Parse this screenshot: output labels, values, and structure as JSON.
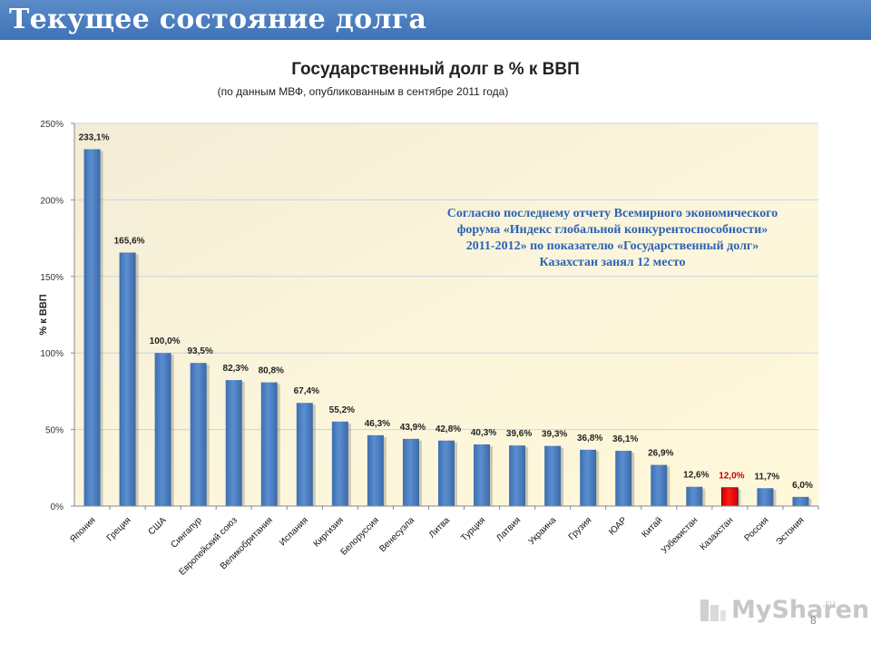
{
  "header": {
    "title": "Текущее состояние долга"
  },
  "annotation": {
    "lines": [
      "Согласно последнему отчету Всемирного экономического",
      "форума «Индекс глобальной конкурентоспособности»",
      "2011-2012» по показателю «Государственный долг»",
      "Казахстан занял 12 место"
    ]
  },
  "page_number": "8",
  "logo": {
    "text": "MySharen",
    "suffix": ".ru",
    "icon": "logo-icon"
  },
  "colors": {
    "bar": "#4f81bd",
    "highlight_bar": "#e00000",
    "highlight_label": "#c00000",
    "header": "#4a7ebf"
  },
  "chart_data": {
    "type": "bar",
    "title": "Государственный долг в % к ВВП",
    "subtitle": "(по данным МВФ, опубликованным в сентябре 2011 года)",
    "ylabel": "% к ВВП",
    "xlabel": "",
    "ylim": [
      0,
      250
    ],
    "yticks": [
      0,
      50,
      100,
      150,
      200,
      250
    ],
    "ytick_labels": [
      "0%",
      "50%",
      "100%",
      "150%",
      "200%",
      "250%"
    ],
    "grid": true,
    "legend": "none",
    "categories": [
      "Япония",
      "Греция",
      "США",
      "Сингапур",
      "Европейский союз",
      "Великобритания",
      "Испания",
      "Киргизия",
      "Белоруссия",
      "Венесуэла",
      "Литва",
      "Турция",
      "Латвия",
      "Украина",
      "Грузия",
      "ЮАР",
      "Китай",
      "Узбекистан",
      "Казахстан",
      "Россия",
      "Эстония"
    ],
    "values": [
      233.1,
      165.6,
      100.0,
      93.5,
      82.3,
      80.8,
      67.4,
      55.2,
      46.3,
      43.9,
      42.8,
      40.3,
      39.6,
      39.3,
      36.8,
      36.1,
      26.9,
      12.6,
      12.0,
      11.7,
      6.0
    ],
    "value_labels": [
      "233,1%",
      "165,6%",
      "100,0%",
      "93,5%",
      "82,3%",
      "80,8%",
      "67,4%",
      "55,2%",
      "46,3%",
      "43,9%",
      "42,8%",
      "40,3%",
      "39,6%",
      "39,3%",
      "36,8%",
      "36,1%",
      "26,9%",
      "12,6%",
      "12,0%",
      "11,7%",
      "6,0%"
    ],
    "highlight": "Казахстан"
  }
}
